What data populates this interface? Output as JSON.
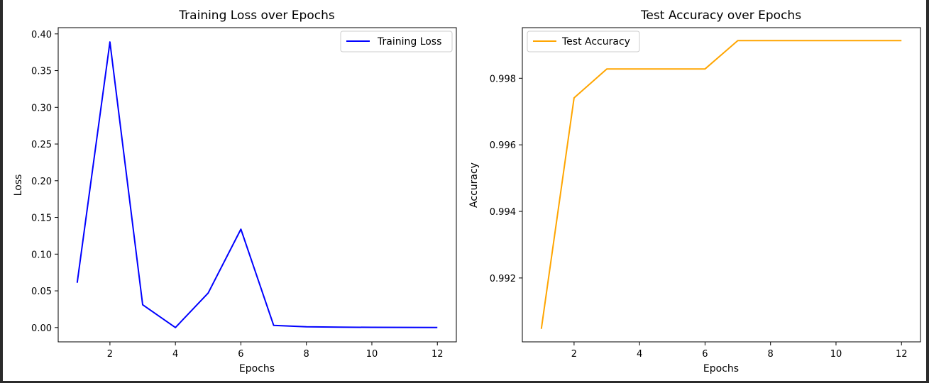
{
  "chart_data": [
    {
      "type": "line",
      "title": "Training Loss over Epochs",
      "xlabel": "Epochs",
      "ylabel": "Loss",
      "xlim": [
        0.42,
        12.58
      ],
      "ylim": [
        -0.0195,
        0.4085
      ],
      "x_ticks": [
        2,
        4,
        6,
        8,
        10,
        12
      ],
      "x_tick_labels": [
        "2",
        "4",
        "6",
        "8",
        "10",
        "12"
      ],
      "y_ticks": [
        0.0,
        0.05,
        0.1,
        0.15,
        0.2,
        0.25,
        0.3,
        0.35,
        0.4
      ],
      "y_tick_labels": [
        "0.00",
        "0.05",
        "0.10",
        "0.15",
        "0.20",
        "0.25",
        "0.30",
        "0.35",
        "0.40"
      ],
      "legend_position": "top-right",
      "grid": false,
      "series": [
        {
          "name": "Training Loss",
          "color": "#0000ff",
          "x": [
            1,
            2,
            3,
            4,
            5,
            6,
            7,
            8,
            9,
            10,
            11,
            12
          ],
          "values": [
            0.061,
            0.389,
            0.031,
            0.0,
            0.047,
            0.134,
            0.003,
            0.001,
            0.0005,
            0.0003,
            0.0002,
            0.0001
          ]
        }
      ]
    },
    {
      "type": "line",
      "title": "Test Accuracy over Epochs",
      "xlabel": "Epochs",
      "ylabel": "Accuracy",
      "xlim": [
        0.42,
        12.58
      ],
      "ylim": [
        0.99008,
        0.99952
      ],
      "x_ticks": [
        2,
        4,
        6,
        8,
        10,
        12
      ],
      "x_tick_labels": [
        "2",
        "4",
        "6",
        "8",
        "10",
        "12"
      ],
      "y_ticks": [
        0.992,
        0.994,
        0.996,
        0.998
      ],
      "y_tick_labels": [
        "0.992",
        "0.994",
        "0.996",
        "0.998"
      ],
      "legend_position": "top-left",
      "grid": false,
      "series": [
        {
          "name": "Test Accuracy",
          "color": "#ffa500",
          "x": [
            1,
            2,
            3,
            4,
            5,
            6,
            7,
            8,
            9,
            10,
            11,
            12
          ],
          "values": [
            0.99047,
            0.99741,
            0.99828,
            0.99828,
            0.99828,
            0.99828,
            0.99913,
            0.99913,
            0.99913,
            0.99913,
            0.99913,
            0.99913
          ]
        }
      ]
    }
  ]
}
